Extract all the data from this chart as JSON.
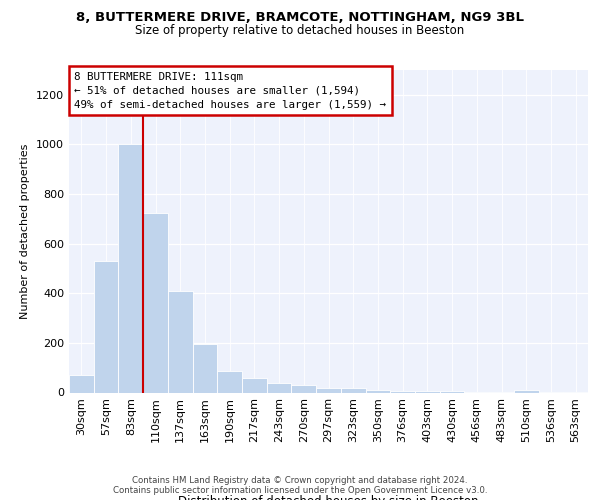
{
  "title_line1": "8, BUTTERMERE DRIVE, BRAMCOTE, NOTTINGHAM, NG9 3BL",
  "title_line2": "Size of property relative to detached houses in Beeston",
  "xlabel": "Distribution of detached houses by size in Beeston",
  "ylabel": "Number of detached properties",
  "footer_line1": "Contains HM Land Registry data © Crown copyright and database right 2024.",
  "footer_line2": "Contains public sector information licensed under the Open Government Licence v3.0.",
  "annotation_line1": "8 BUTTERMERE DRIVE: 111sqm",
  "annotation_line2": "← 51% of detached houses are smaller (1,594)",
  "annotation_line3": "49% of semi-detached houses are larger (1,559) →",
  "bar_color": "#c0d4ec",
  "bar_edge_color": "#ffffff",
  "background_color": "#eef2fc",
  "marker_color": "#cc0000",
  "categories": [
    "30sqm",
    "57sqm",
    "83sqm",
    "110sqm",
    "137sqm",
    "163sqm",
    "190sqm",
    "217sqm",
    "243sqm",
    "270sqm",
    "297sqm",
    "323sqm",
    "350sqm",
    "376sqm",
    "403sqm",
    "430sqm",
    "456sqm",
    "483sqm",
    "510sqm",
    "536sqm",
    "563sqm"
  ],
  "values": [
    70,
    530,
    1000,
    725,
    408,
    197,
    88,
    60,
    40,
    30,
    20,
    20,
    10,
    5,
    5,
    5,
    2,
    2,
    10,
    2,
    2
  ],
  "marker_bar_index": 2,
  "ylim": [
    0,
    1300
  ],
  "yticks": [
    0,
    200,
    400,
    600,
    800,
    1000,
    1200
  ]
}
